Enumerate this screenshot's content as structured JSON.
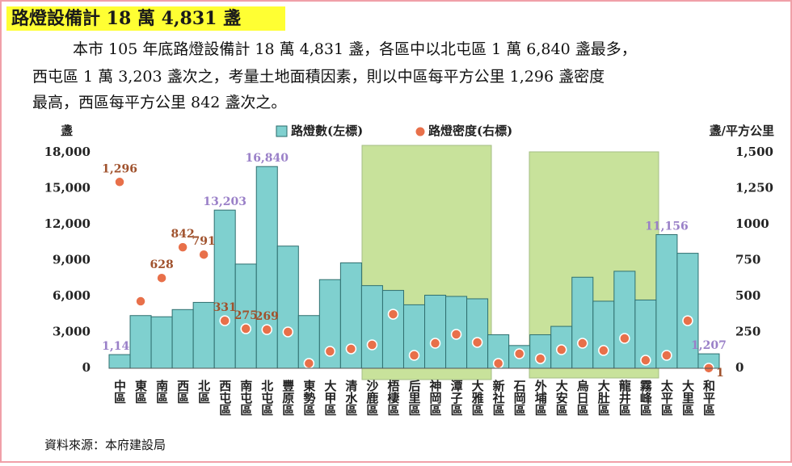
{
  "header": {
    "title": "路燈設備計 18 萬 4,831 盞"
  },
  "intro": [
    "本市 105 年底路燈設備計 18 萬 4,831 盞，各區中以北屯區 1 萬 6,840 盞最多，",
    "西屯區 1 萬 3,203 盞次之，考量土地面積因素，則以中區每平方公里 1,296 盞密度",
    "最高，西區每平方公里 842 盞次之。"
  ],
  "chart_data": {
    "type": "bar",
    "y_label": "盞",
    "y2_label": "盞/平方公里",
    "categories": [
      "中區",
      "東區",
      "南區",
      "西區",
      "北區",
      "西屯區",
      "南屯區",
      "北屯區",
      "豐原區",
      "東勢區",
      "大甲區",
      "清水區",
      "沙鹿區",
      "梧棲區",
      "后里區",
      "神岡區",
      "潭子區",
      "大雅區",
      "新社區",
      "石岡區",
      "外埔區",
      "大安區",
      "烏日區",
      "大肚區",
      "龍井區",
      "霧峰區",
      "太平區",
      "大里區",
      "和平區"
    ],
    "series": [
      {
        "name": "路燈數(左標)",
        "type": "bar",
        "color": "#7fd0cf",
        "values": [
          1141,
          4400,
          4300,
          4900,
          5500,
          13203,
          8700,
          16840,
          10200,
          4400,
          7400,
          8800,
          6900,
          6500,
          5300,
          6100,
          6000,
          5800,
          2800,
          1900,
          2800,
          3500,
          7600,
          5600,
          8100,
          5700,
          11156,
          9600,
          1207
        ],
        "value_labels": [
          "1,141",
          null,
          null,
          null,
          null,
          "13,203",
          null,
          "16,840",
          null,
          null,
          null,
          null,
          null,
          null,
          null,
          null,
          null,
          null,
          null,
          null,
          null,
          null,
          null,
          null,
          null,
          null,
          "11,156",
          null,
          "1,207"
        ]
      },
      {
        "name": "路燈密度(右標)",
        "type": "scatter",
        "axis": "y2",
        "color": "#e8704a",
        "values": [
          1296,
          466,
          628,
          842,
          791,
          331,
          275,
          269,
          253,
          34,
          118,
          135,
          163,
          376,
          90,
          174,
          236,
          180,
          34,
          101,
          67,
          129,
          174,
          124,
          208,
          56,
          90,
          331,
          1
        ],
        "value_labels": [
          "1,296",
          null,
          "628",
          "842",
          "791",
          "331",
          "275",
          "269",
          null,
          null,
          null,
          null,
          null,
          null,
          null,
          null,
          null,
          null,
          null,
          null,
          null,
          null,
          null,
          null,
          null,
          null,
          null,
          null,
          "1"
        ]
      }
    ],
    "ylim": [
      0,
      18000
    ],
    "yticks": [
      0,
      {
        "value": 3000,
        "label": "3,000"
      },
      {
        "value": 6000,
        "label": "6,000"
      },
      {
        "value": 9000,
        "label": "9,000"
      },
      {
        "value": 12000,
        "label": "12,000"
      },
      {
        "value": 15000,
        "label": "15,000"
      },
      {
        "value": 18000,
        "label": "18,000"
      }
    ],
    "y2lim": [
      0,
      1500
    ],
    "y2ticks": [
      0,
      250,
      500,
      750,
      1000,
      {
        "value": 1250,
        "label": "1,250"
      },
      {
        "value": 1500,
        "label": "1,500"
      }
    ],
    "legend": "top"
  },
  "source": "資料來源：本府建設局"
}
